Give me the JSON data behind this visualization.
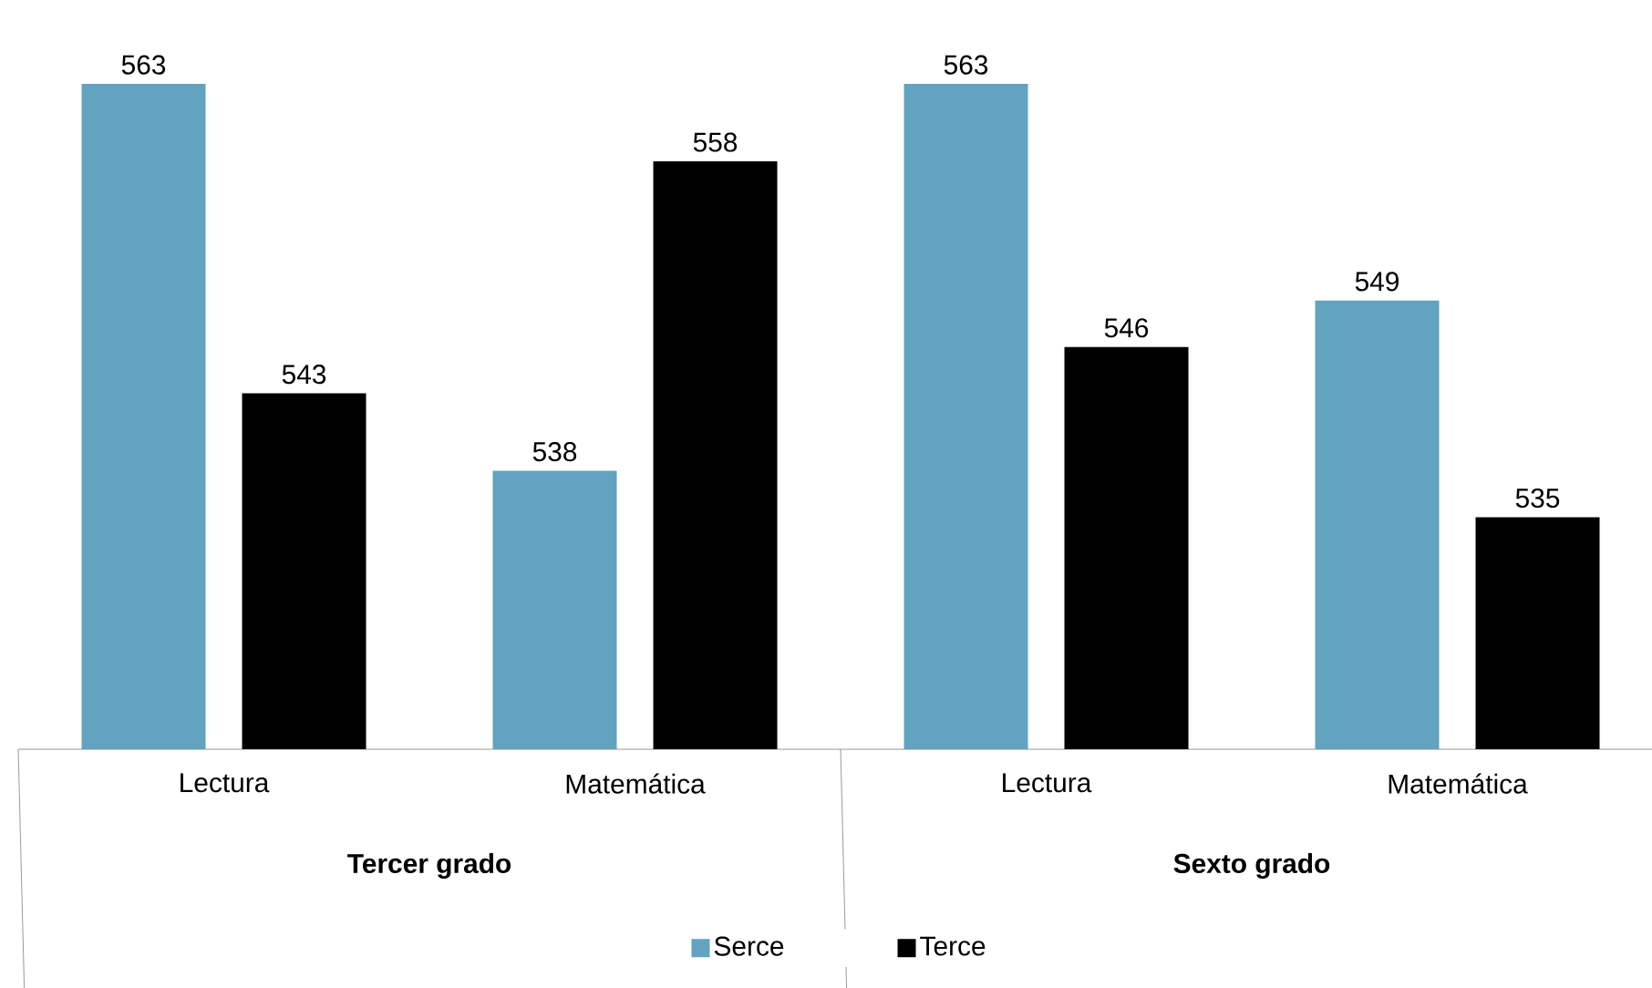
{
  "chart_data": {
    "type": "bar",
    "categories": [
      "Lectura",
      "Matemática",
      "Lectura",
      "Matemática"
    ],
    "series": [
      {
        "name": "Serce",
        "color": "#62a3c0",
        "values": [
          563,
          538,
          563,
          549
        ]
      },
      {
        "name": "Terce",
        "color": "#000000",
        "values": [
          543,
          558,
          546,
          535
        ]
      }
    ],
    "ylim": [
      520,
      563
    ],
    "data_labels": true,
    "legend": "bottom",
    "annotations": [
      "**Tercer grado**",
      "**Sexto grado**"
    ]
  }
}
